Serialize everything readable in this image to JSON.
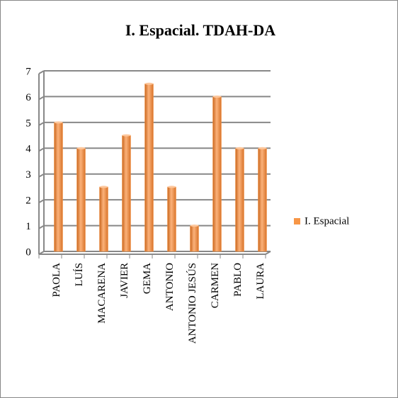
{
  "chart_data": {
    "type": "bar",
    "title": "I. Espacial. TDAH-DA",
    "categories": [
      "PAOLA",
      "LUÍS",
      "MACARENA",
      "JAVIER",
      "GEMA",
      "ANTONIO",
      "ANTONIO JESÚS",
      "CARMEN",
      "PABLO",
      "LAURA"
    ],
    "series": [
      {
        "name": "I. Espacial",
        "color": "#f79646",
        "values": [
          5,
          4,
          2.5,
          4.5,
          6.5,
          2.5,
          1,
          6,
          4,
          4
        ]
      }
    ],
    "ylim": [
      0,
      7
    ],
    "yticks": [
      0,
      1,
      2,
      3,
      4,
      5,
      6,
      7
    ],
    "grid": true,
    "legend": "right"
  }
}
